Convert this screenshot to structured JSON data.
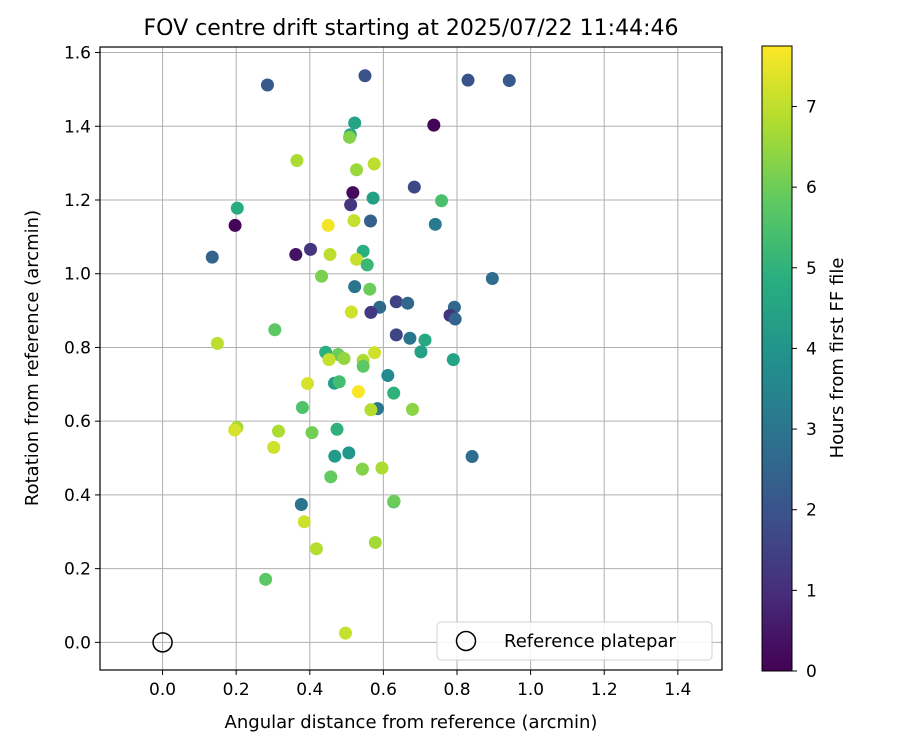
{
  "chart_data": {
    "type": "scatter",
    "title": "FOV centre drift starting at 2025/07/22 11:44:46",
    "xlabel": "Angular distance from reference (arcmin)",
    "ylabel": "Rotation from reference (arcmin)",
    "xlim": [
      -0.17,
      1.52
    ],
    "ylim": [
      -0.075,
      1.615
    ],
    "xticks": [
      0.0,
      0.2,
      0.4,
      0.6,
      0.8,
      1.0,
      1.2,
      1.4
    ],
    "yticks": [
      0.0,
      0.2,
      0.4,
      0.6,
      0.8,
      1.0,
      1.2,
      1.4,
      1.6
    ],
    "grid": true,
    "legend": {
      "placement": "lower-right",
      "entries": [
        "Reference platepar"
      ]
    },
    "reference_point": {
      "x": 0.0,
      "y": 0.0,
      "label": "Reference platepar"
    },
    "colorbar": {
      "label": "Hours from first FF file",
      "range": [
        0,
        7.75
      ],
      "ticks": [
        0,
        1,
        2,
        3,
        4,
        5,
        6,
        7
      ],
      "colormap": "viridis"
    },
    "points": [
      {
        "x": 0.285,
        "y": 1.512,
        "c": 2.2
      },
      {
        "x": 0.55,
        "y": 1.537,
        "c": 2.0
      },
      {
        "x": 0.83,
        "y": 1.525,
        "c": 2.0
      },
      {
        "x": 0.942,
        "y": 1.524,
        "c": 2.2
      },
      {
        "x": 0.737,
        "y": 1.403,
        "c": 0.1
      },
      {
        "x": 0.522,
        "y": 1.409,
        "c": 4.5
      },
      {
        "x": 0.51,
        "y": 1.377,
        "c": 4.6
      },
      {
        "x": 0.508,
        "y": 1.37,
        "c": 6.3
      },
      {
        "x": 0.365,
        "y": 1.307,
        "c": 6.8
      },
      {
        "x": 0.527,
        "y": 1.282,
        "c": 6.6
      },
      {
        "x": 0.575,
        "y": 1.298,
        "c": 7.0
      },
      {
        "x": 0.684,
        "y": 1.235,
        "c": 1.7
      },
      {
        "x": 0.517,
        "y": 1.22,
        "c": 0.2
      },
      {
        "x": 0.511,
        "y": 1.187,
        "c": 1.2
      },
      {
        "x": 0.572,
        "y": 1.205,
        "c": 4.4
      },
      {
        "x": 0.758,
        "y": 1.198,
        "c": 5.5
      },
      {
        "x": 0.203,
        "y": 1.178,
        "c": 4.8
      },
      {
        "x": 0.197,
        "y": 1.131,
        "c": 0.1
      },
      {
        "x": 0.45,
        "y": 1.131,
        "c": 7.6
      },
      {
        "x": 0.52,
        "y": 1.144,
        "c": 7.1
      },
      {
        "x": 0.565,
        "y": 1.143,
        "c": 2.4
      },
      {
        "x": 0.741,
        "y": 1.134,
        "c": 3.2
      },
      {
        "x": 0.135,
        "y": 1.045,
        "c": 2.5
      },
      {
        "x": 0.362,
        "y": 1.052,
        "c": 0.4
      },
      {
        "x": 0.402,
        "y": 1.066,
        "c": 1.2
      },
      {
        "x": 0.455,
        "y": 1.052,
        "c": 7.0
      },
      {
        "x": 0.545,
        "y": 1.061,
        "c": 4.9
      },
      {
        "x": 0.527,
        "y": 1.039,
        "c": 7.1
      },
      {
        "x": 0.556,
        "y": 1.024,
        "c": 5.2
      },
      {
        "x": 0.432,
        "y": 0.993,
        "c": 6.2
      },
      {
        "x": 0.896,
        "y": 0.987,
        "c": 2.8
      },
      {
        "x": 0.522,
        "y": 0.965,
        "c": 3.0
      },
      {
        "x": 0.563,
        "y": 0.958,
        "c": 6.0
      },
      {
        "x": 0.635,
        "y": 0.924,
        "c": 1.6
      },
      {
        "x": 0.666,
        "y": 0.92,
        "c": 2.6
      },
      {
        "x": 0.59,
        "y": 0.909,
        "c": 2.7
      },
      {
        "x": 0.793,
        "y": 0.909,
        "c": 2.6
      },
      {
        "x": 0.513,
        "y": 0.896,
        "c": 7.2
      },
      {
        "x": 0.566,
        "y": 0.895,
        "c": 1.3
      },
      {
        "x": 0.781,
        "y": 0.887,
        "c": 1.2
      },
      {
        "x": 0.795,
        "y": 0.877,
        "c": 2.5
      },
      {
        "x": 0.305,
        "y": 0.848,
        "c": 5.8
      },
      {
        "x": 0.635,
        "y": 0.834,
        "c": 1.6
      },
      {
        "x": 0.672,
        "y": 0.825,
        "c": 3.0
      },
      {
        "x": 0.713,
        "y": 0.82,
        "c": 4.7
      },
      {
        "x": 0.149,
        "y": 0.811,
        "c": 7.0
      },
      {
        "x": 0.702,
        "y": 0.788,
        "c": 4.4
      },
      {
        "x": 0.443,
        "y": 0.787,
        "c": 4.9
      },
      {
        "x": 0.477,
        "y": 0.781,
        "c": 6.0
      },
      {
        "x": 0.576,
        "y": 0.786,
        "c": 7.2
      },
      {
        "x": 0.452,
        "y": 0.767,
        "c": 7.1
      },
      {
        "x": 0.493,
        "y": 0.77,
        "c": 6.5
      },
      {
        "x": 0.545,
        "y": 0.765,
        "c": 6.8
      },
      {
        "x": 0.79,
        "y": 0.767,
        "c": 4.5
      },
      {
        "x": 0.545,
        "y": 0.749,
        "c": 5.8
      },
      {
        "x": 0.612,
        "y": 0.724,
        "c": 3.7
      },
      {
        "x": 0.394,
        "y": 0.702,
        "c": 7.3
      },
      {
        "x": 0.467,
        "y": 0.703,
        "c": 4.3
      },
      {
        "x": 0.48,
        "y": 0.707,
        "c": 5.4
      },
      {
        "x": 0.628,
        "y": 0.676,
        "c": 5.0
      },
      {
        "x": 0.532,
        "y": 0.68,
        "c": 7.7
      },
      {
        "x": 0.38,
        "y": 0.637,
        "c": 5.6
      },
      {
        "x": 0.584,
        "y": 0.634,
        "c": 3.1
      },
      {
        "x": 0.566,
        "y": 0.631,
        "c": 6.9
      },
      {
        "x": 0.679,
        "y": 0.632,
        "c": 6.4
      },
      {
        "x": 0.202,
        "y": 0.583,
        "c": 6.7
      },
      {
        "x": 0.196,
        "y": 0.576,
        "c": 7.3
      },
      {
        "x": 0.315,
        "y": 0.573,
        "c": 6.8
      },
      {
        "x": 0.406,
        "y": 0.569,
        "c": 6.1
      },
      {
        "x": 0.474,
        "y": 0.578,
        "c": 5.0
      },
      {
        "x": 0.302,
        "y": 0.529,
        "c": 7.2
      },
      {
        "x": 0.506,
        "y": 0.514,
        "c": 4.1
      },
      {
        "x": 0.468,
        "y": 0.505,
        "c": 4.2
      },
      {
        "x": 0.841,
        "y": 0.504,
        "c": 2.8
      },
      {
        "x": 0.543,
        "y": 0.47,
        "c": 6.3
      },
      {
        "x": 0.596,
        "y": 0.473,
        "c": 6.8
      },
      {
        "x": 0.457,
        "y": 0.449,
        "c": 5.9
      },
      {
        "x": 0.628,
        "y": 0.381,
        "c": 5.3
      },
      {
        "x": 0.629,
        "y": 0.383,
        "c": 6.0
      },
      {
        "x": 0.377,
        "y": 0.374,
        "c": 3.0
      },
      {
        "x": 0.385,
        "y": 0.327,
        "c": 7.2
      },
      {
        "x": 0.578,
        "y": 0.271,
        "c": 6.7
      },
      {
        "x": 0.418,
        "y": 0.254,
        "c": 6.9
      },
      {
        "x": 0.28,
        "y": 0.171,
        "c": 5.8
      },
      {
        "x": 0.497,
        "y": 0.025,
        "c": 7.1
      }
    ]
  }
}
